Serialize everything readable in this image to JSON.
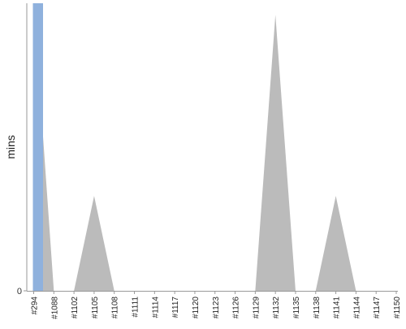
{
  "chart_data": {
    "type": "area",
    "ylabel": "mins",
    "y_ticks": [
      "0"
    ],
    "ylim": [
      0,
      100
    ],
    "categories": [
      "#294",
      "#1088",
      "#1102",
      "#1105",
      "#1108",
      "#1111",
      "#1114",
      "#1117",
      "#1120",
      "#1123",
      "#1126",
      "#1129",
      "#1132",
      "#1135",
      "#1138",
      "#1141",
      "#1144",
      "#1147",
      "#1150"
    ],
    "highlight": {
      "category": "#294",
      "value": 100,
      "color": "#8fb1dd"
    },
    "series": [
      {
        "color": "#bbbbbb",
        "x": [
          "#294",
          "#1088",
          "#1102",
          "#1105",
          "#1108",
          "#1129",
          "#1132",
          "#1135",
          "#1138",
          "#1141",
          "#1144",
          "#1147",
          "#1150"
        ],
        "values": [
          100,
          0,
          0,
          33,
          0,
          0,
          96,
          0,
          0,
          33,
          0,
          0,
          0
        ]
      }
    ],
    "grid": false,
    "legend": "none"
  }
}
